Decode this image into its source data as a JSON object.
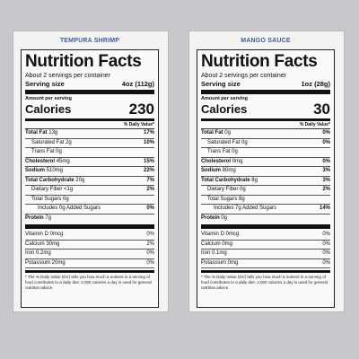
{
  "labels": [
    {
      "product": "TEMPURA SHRIMP",
      "title": "Nutrition Facts",
      "servings": "About 2 servings per container",
      "serving_size_label": "Serving size",
      "serving_size_value": "4oz (112g)",
      "amount_per": "Amount per serving",
      "calories_label": "Calories",
      "calories_value": "230",
      "dv_header": "% Daily Value*",
      "total_fat_label": "Total Fat",
      "total_fat_amt": "13g",
      "total_fat_pct": "17%",
      "sat_fat": "Saturated Fat 2g",
      "sat_fat_pct": "10%",
      "trans_fat": "Trans Fat 0g",
      "cholesterol_label": "Cholesterol",
      "cholesterol_amt": "45mg",
      "cholesterol_pct": "15%",
      "sodium_label": "Sodium",
      "sodium_amt": "510mg",
      "sodium_pct": "22%",
      "carb_label": "Total Carbohydrate",
      "carb_amt": "20g",
      "carb_pct": "7%",
      "fiber": "Dietary Fiber <1g",
      "fiber_pct": "2%",
      "sugars": "Total Sugars 0g",
      "added_sugars": "Includes 0g Added Sugars",
      "added_sugars_pct": "0%",
      "protein_label": "Protein",
      "protein_amt": "7g",
      "vit_d": "Vitamin D 0mcg",
      "vit_d_pct": "0%",
      "calcium": "Calcium 30mg",
      "calcium_pct": "2%",
      "iron": "Iron 0.2mg",
      "iron_pct": "0%",
      "potassium": "Potassium 20mg",
      "potassium_pct": "0%",
      "footnote": "* The % Daily Value (DV) tells you how much a nutrient in a serving of food contributes to a daily diet. 2,000 calories a day is used for general nutrition advice."
    },
    {
      "product": "MANGO SAUCE",
      "title": "Nutrition Facts",
      "servings": "About 2 servings per container",
      "serving_size_label": "Serving size",
      "serving_size_value": "1oz (28g)",
      "amount_per": "Amount per serving",
      "calories_label": "Calories",
      "calories_value": "30",
      "dv_header": "% Daily Value*",
      "total_fat_label": "Total Fat",
      "total_fat_amt": "0g",
      "total_fat_pct": "0%",
      "sat_fat": "Saturated Fat 0g",
      "sat_fat_pct": "0%",
      "trans_fat": "Trans Fat 0g",
      "cholesterol_label": "Cholesterol",
      "cholesterol_amt": "0mg",
      "cholesterol_pct": "0%",
      "sodium_label": "Sodium",
      "sodium_amt": "80mg",
      "sodium_pct": "3%",
      "carb_label": "Total Carbohydrate",
      "carb_amt": "8g",
      "carb_pct": "3%",
      "fiber": "Dietary Fiber 0g",
      "fiber_pct": "2%",
      "sugars": "Total Sugars 8g",
      "added_sugars": "Includes 7g Added Sugars",
      "added_sugars_pct": "14%",
      "protein_label": "Protein",
      "protein_amt": "0g",
      "vit_d": "Vitamin D 0mcg",
      "vit_d_pct": "0%",
      "calcium": "Calcium 0mg",
      "calcium_pct": "0%",
      "iron": "Iron 0.1mg",
      "iron_pct": "0%",
      "potassium": "Potassium 0mg",
      "potassium_pct": "0%",
      "footnote": "* The % Daily Value (DV) tells you how much a nutrient in a serving of food contributes to a daily diet. 2,000 calories a day is used for general nutrition advice."
    }
  ]
}
